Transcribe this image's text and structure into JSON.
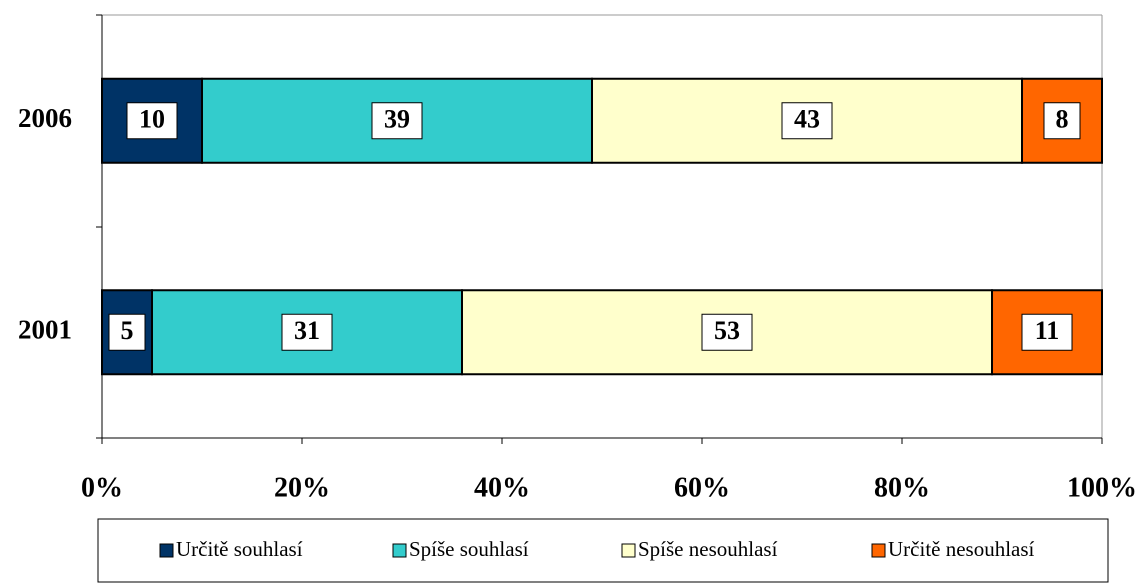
{
  "chart_data": {
    "type": "stacked-bar-horizontal",
    "categories": [
      "2006",
      "2001"
    ],
    "series": [
      {
        "name": "Určitě souhlasí",
        "color": "#003366",
        "values": [
          10,
          5
        ]
      },
      {
        "name": "Spíše souhlasí",
        "color": "#33CCCC",
        "values": [
          39,
          31
        ]
      },
      {
        "name": "Spíše nesouhlasí",
        "color": "#FFFFCC",
        "values": [
          43,
          53
        ]
      },
      {
        "name": "Určitě nesouhlasí",
        "color": "#FF6600",
        "values": [
          8,
          11
        ]
      }
    ],
    "xlim": [
      0,
      100
    ],
    "xticks": [
      {
        "value": 0,
        "label": "0%"
      },
      {
        "value": 20,
        "label": "20%"
      },
      {
        "value": 40,
        "label": "40%"
      },
      {
        "value": 60,
        "label": "60%"
      },
      {
        "value": 80,
        "label": "80%"
      },
      {
        "value": 100,
        "label": "100%"
      }
    ],
    "legend": "bottom"
  }
}
